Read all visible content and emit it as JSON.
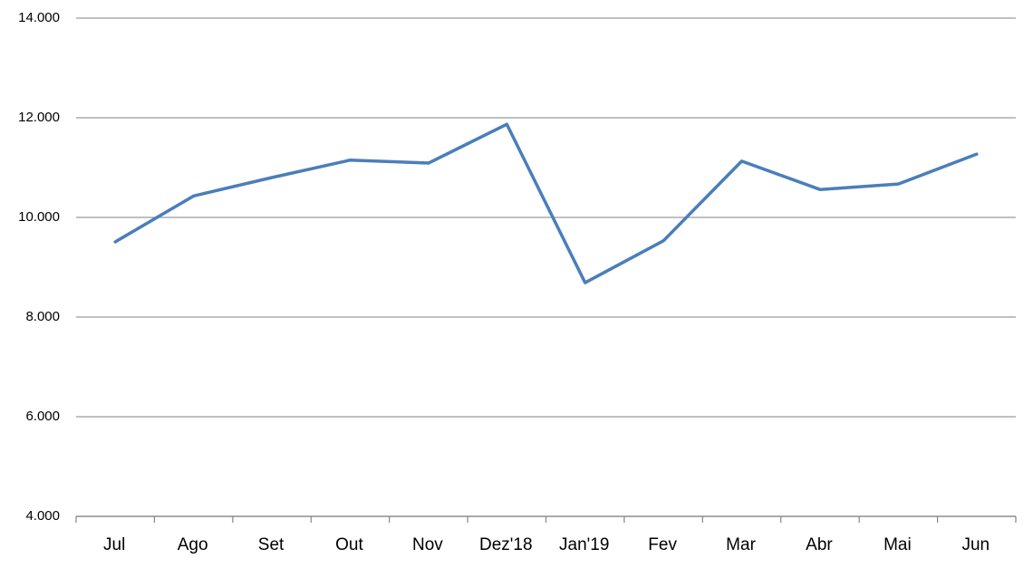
{
  "chart_data": {
    "type": "line",
    "categories": [
      "Jul",
      "Ago",
      "Set",
      "Out",
      "Nov",
      "Dez'18",
      "Jan'19",
      "Fev",
      "Mar",
      "Abr",
      "Mai",
      "Jun"
    ],
    "series": [
      {
        "color": "#4a7ebb",
        "values": [
          9510,
          10430,
          10800,
          11150,
          11090,
          11870,
          8690,
          9530,
          11130,
          10560,
          10670,
          11270
        ]
      }
    ],
    "ylim": [
      4000,
      14000
    ],
    "yticks": [
      {
        "value": 4000,
        "label": "4.000"
      },
      {
        "value": 6000,
        "label": "6.000"
      },
      {
        "value": 8000,
        "label": "8.000"
      },
      {
        "value": 10000,
        "label": "10.000"
      },
      {
        "value": 12000,
        "label": "12.000"
      },
      {
        "value": 14000,
        "label": "14.000"
      }
    ],
    "grid": true
  }
}
